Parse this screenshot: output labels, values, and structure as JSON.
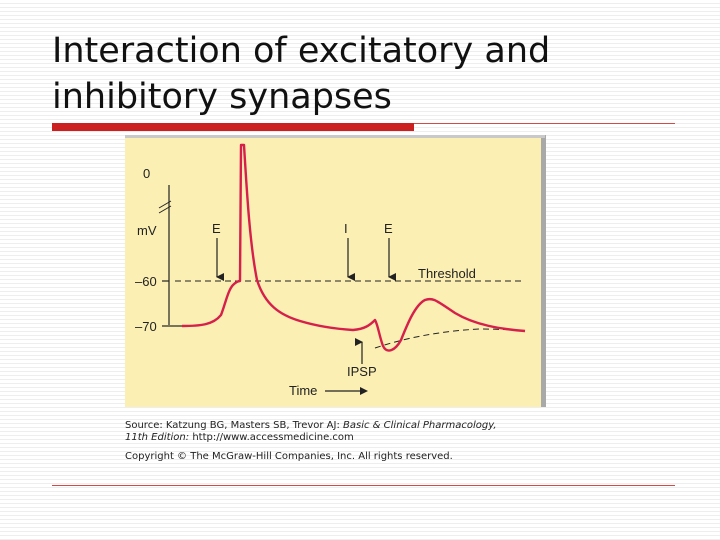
{
  "slide": {
    "title_line1": "Interaction of excitatory and",
    "title_line2": "inhibitory synapses"
  },
  "diagram": {
    "y_axis_labels": {
      "zero": "0",
      "unit": "mV",
      "minus60": "–60",
      "minus70": "–70"
    },
    "arrows": [
      {
        "label": "E"
      },
      {
        "label": "I"
      },
      {
        "label": "E"
      }
    ],
    "threshold_label": "Threshold",
    "ipsp_label": "IPSP",
    "time_label": "Time",
    "colors": {
      "panel": "#fbefb4",
      "trace": "#d61f4a",
      "frame": "#a9a9a9"
    }
  },
  "credit": {
    "source_prefix": "Source: Katzung BG, Masters SB, Trevor AJ: ",
    "source_italic": "Basic & Clinical Pharmacology,",
    "edition_italic": "11th Edition: ",
    "edition_url": "http://www.accessmedicine.com",
    "copyright": "Copyright © The McGraw-Hill Companies, Inc. All rights reserved."
  }
}
